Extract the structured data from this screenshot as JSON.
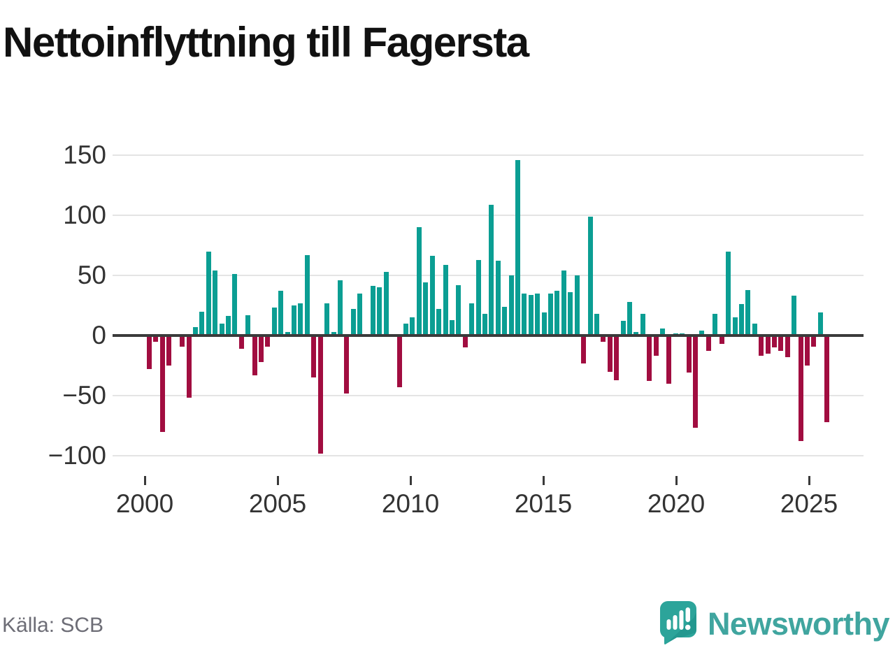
{
  "title": "Nettoinflyttning till Fagersta",
  "source": "Källa: SCB",
  "brand": {
    "name": "Newsworthy",
    "icon": "bar-chart-speech-bubble",
    "color": "#40a59f"
  },
  "chart_data": {
    "type": "bar",
    "title": "Nettoinflyttning till Fagersta",
    "xlabel": "",
    "ylabel": "",
    "frequency": "quarterly",
    "start": {
      "year": 2000,
      "quarter": 1
    },
    "series": [
      {
        "name": "Nettoinflyttning per kvartal",
        "values": [
          -28,
          -5,
          -80,
          -25,
          0,
          -9,
          -52,
          7,
          20,
          70,
          54,
          10,
          16,
          51,
          -11,
          17,
          -33,
          -22,
          -9,
          23,
          37,
          3,
          25,
          27,
          67,
          -35,
          -98,
          27,
          3,
          46,
          -48,
          22,
          35,
          1,
          41,
          40,
          53,
          0,
          -43,
          10,
          15,
          90,
          44,
          66,
          22,
          59,
          13,
          42,
          -10,
          27,
          63,
          18,
          109,
          62,
          24,
          50,
          146,
          35,
          34,
          35,
          19,
          35,
          37,
          54,
          36,
          50,
          -23,
          99,
          18,
          -5,
          -30,
          -37,
          12,
          28,
          3,
          18,
          -38,
          -17,
          6,
          -40,
          2,
          2,
          -31,
          -77,
          4,
          -13,
          18,
          -7,
          70,
          15,
          26,
          38,
          10,
          -17,
          -15,
          -10,
          -13,
          -18,
          33,
          -88,
          -25,
          -9,
          19,
          -72
        ]
      }
    ],
    "xticks": [
      2000,
      2005,
      2010,
      2015,
      2020,
      2025
    ],
    "yticks": [
      150,
      100,
      50,
      0,
      -50,
      -100
    ],
    "ylim": [
      -100,
      150
    ],
    "grid": "horizontal",
    "legend": "none",
    "colors": {
      "positive": "#0b9e93",
      "negative": "#a10d40"
    }
  }
}
